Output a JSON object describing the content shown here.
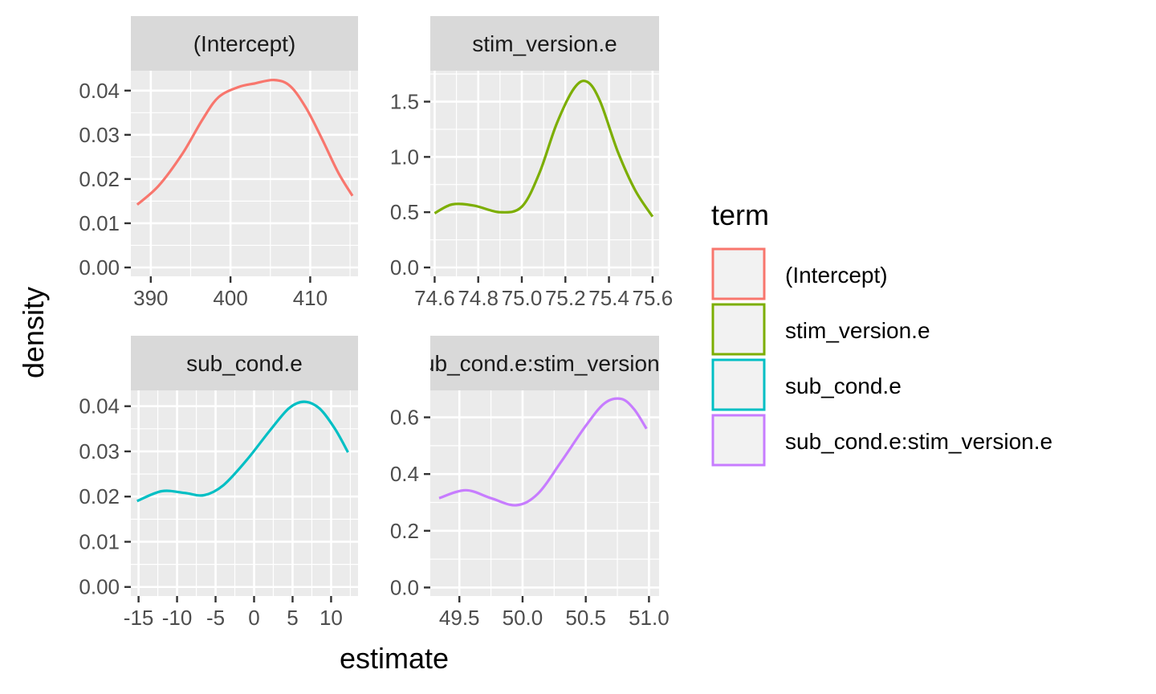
{
  "chart_data": {
    "type": "line",
    "xlabel": "estimate",
    "ylabel": "density",
    "legend": {
      "title": "term",
      "position": "right"
    },
    "grid": true,
    "facets": [
      {
        "strip": "(Intercept)",
        "color": "#F8766D",
        "xlim": [
          387.5,
          416.0
        ],
        "ylim": [
          -0.002,
          0.0445
        ],
        "x_ticks": [
          390,
          400,
          410
        ],
        "x_tick_labels": [
          "390",
          "400",
          "410"
        ],
        "y_ticks": [
          0.0,
          0.01,
          0.02,
          0.03,
          0.04
        ],
        "y_tick_labels": [
          "0.00",
          "0.01",
          "0.02",
          "0.03",
          "0.04"
        ],
        "points": [
          [
            388.3,
            0.0142
          ],
          [
            391,
            0.0185
          ],
          [
            394,
            0.0258
          ],
          [
            396.5,
            0.0335
          ],
          [
            398.5,
            0.0385
          ],
          [
            401,
            0.0408
          ],
          [
            403,
            0.0416
          ],
          [
            405.5,
            0.0424
          ],
          [
            407.5,
            0.041
          ],
          [
            409.5,
            0.036
          ],
          [
            411.5,
            0.029
          ],
          [
            413.5,
            0.0215
          ],
          [
            415.3,
            0.0162
          ]
        ]
      },
      {
        "strip": "stim_version.e",
        "color": "#7CAE00",
        "xlim": [
          74.58,
          75.63
        ],
        "ylim": [
          -0.08,
          1.78
        ],
        "x_ticks": [
          74.6,
          74.8,
          75.0,
          75.2,
          75.4,
          75.6
        ],
        "x_tick_labels": [
          "74.6",
          "74.8",
          "75.0",
          "75.2",
          "75.4",
          "75.6"
        ],
        "y_ticks": [
          0.0,
          0.5,
          1.0,
          1.5
        ],
        "y_tick_labels": [
          "0.0",
          "0.5",
          "1.0",
          "1.5"
        ],
        "points": [
          [
            74.6,
            0.49
          ],
          [
            74.68,
            0.57
          ],
          [
            74.78,
            0.56
          ],
          [
            74.9,
            0.5
          ],
          [
            75.0,
            0.55
          ],
          [
            75.08,
            0.85
          ],
          [
            75.16,
            1.3
          ],
          [
            75.24,
            1.62
          ],
          [
            75.3,
            1.68
          ],
          [
            75.36,
            1.5
          ],
          [
            75.44,
            1.05
          ],
          [
            75.52,
            0.7
          ],
          [
            75.6,
            0.46
          ]
        ]
      },
      {
        "strip": "sub_cond.e",
        "color": "#00BFC4",
        "xlim": [
          -16.0,
          13.5
        ],
        "ylim": [
          -0.002,
          0.0435
        ],
        "x_ticks": [
          -15,
          -10,
          -5,
          0,
          5,
          10
        ],
        "x_tick_labels": [
          "-15",
          "-10",
          "-5",
          "0",
          "5",
          "10"
        ],
        "y_ticks": [
          0.0,
          0.01,
          0.02,
          0.03,
          0.04
        ],
        "y_tick_labels": [
          "0.00",
          "0.01",
          "0.02",
          "0.03",
          "0.04"
        ],
        "points": [
          [
            -15.2,
            0.019
          ],
          [
            -12,
            0.0212
          ],
          [
            -9,
            0.0208
          ],
          [
            -6.5,
            0.0203
          ],
          [
            -4,
            0.0225
          ],
          [
            -1,
            0.028
          ],
          [
            2,
            0.0345
          ],
          [
            4.5,
            0.0395
          ],
          [
            6.5,
            0.041
          ],
          [
            8.5,
            0.0395
          ],
          [
            10.5,
            0.035
          ],
          [
            12.2,
            0.0298
          ]
        ]
      },
      {
        "strip": "sub_cond.e:stim_version.e",
        "color": "#C77CFF",
        "xlim": [
          49.27,
          51.08
        ],
        "ylim": [
          -0.03,
          0.695
        ],
        "x_ticks": [
          49.5,
          50.0,
          50.5,
          51.0
        ],
        "x_tick_labels": [
          "49.5",
          "50.0",
          "50.5",
          "51.0"
        ],
        "y_ticks": [
          0.0,
          0.2,
          0.4,
          0.6
        ],
        "y_tick_labels": [
          "0.0",
          "0.2",
          "0.4",
          "0.6"
        ],
        "points": [
          [
            49.34,
            0.315
          ],
          [
            49.55,
            0.343
          ],
          [
            49.75,
            0.315
          ],
          [
            49.95,
            0.29
          ],
          [
            50.12,
            0.33
          ],
          [
            50.3,
            0.44
          ],
          [
            50.5,
            0.57
          ],
          [
            50.65,
            0.65
          ],
          [
            50.78,
            0.665
          ],
          [
            50.88,
            0.63
          ],
          [
            50.98,
            0.56
          ]
        ]
      }
    ]
  }
}
